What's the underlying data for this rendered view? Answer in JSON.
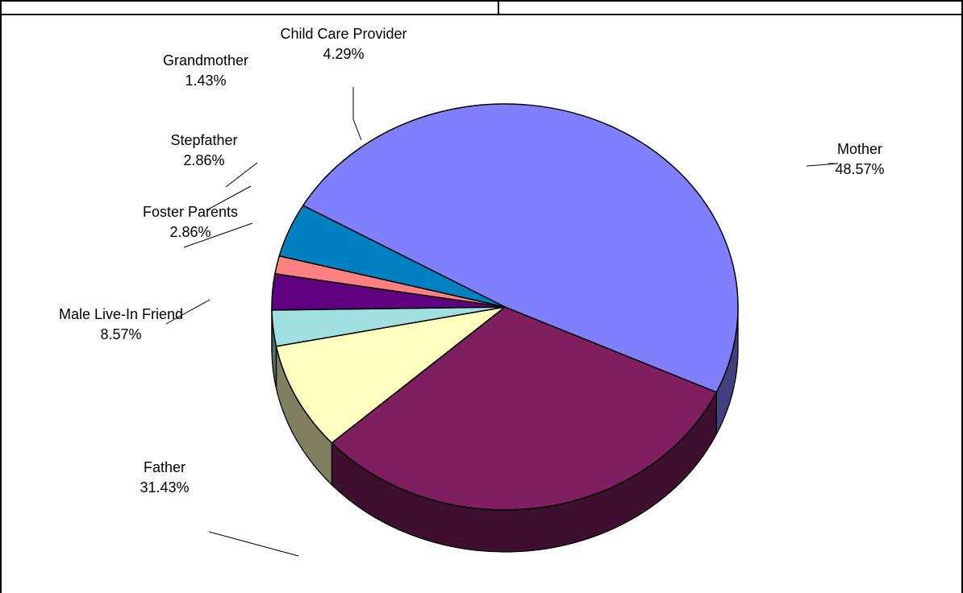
{
  "chart_data": {
    "type": "pie",
    "title": "",
    "style": "3d-tilted",
    "slices": [
      {
        "label": "Mother",
        "value": 48.57,
        "value_label": "48.57%",
        "color": "#8080FF",
        "side_color": "#40407F"
      },
      {
        "label": "Father",
        "value": 31.43,
        "value_label": "31.43%",
        "color": "#7F1F5F",
        "side_color": "#3F0F2F"
      },
      {
        "label": "Male Live-In Friend",
        "value": 8.57,
        "value_label": "8.57%",
        "color": "#FFFFC0",
        "side_color": "#808060"
      },
      {
        "label": "Foster Parents",
        "value": 2.86,
        "value_label": "2.86%",
        "color": "#A0E0E0",
        "side_color": "#507070"
      },
      {
        "label": "Stepfather",
        "value": 2.86,
        "value_label": "2.86%",
        "color": "#600080",
        "side_color": "#300040"
      },
      {
        "label": "Grandmother",
        "value": 1.43,
        "value_label": "1.43%",
        "color": "#FF8080",
        "side_color": "#804040"
      },
      {
        "label": "Child Care Provider",
        "value": 4.29,
        "value_label": "4.29%",
        "color": "#0080C0",
        "side_color": "#004060"
      }
    ]
  }
}
